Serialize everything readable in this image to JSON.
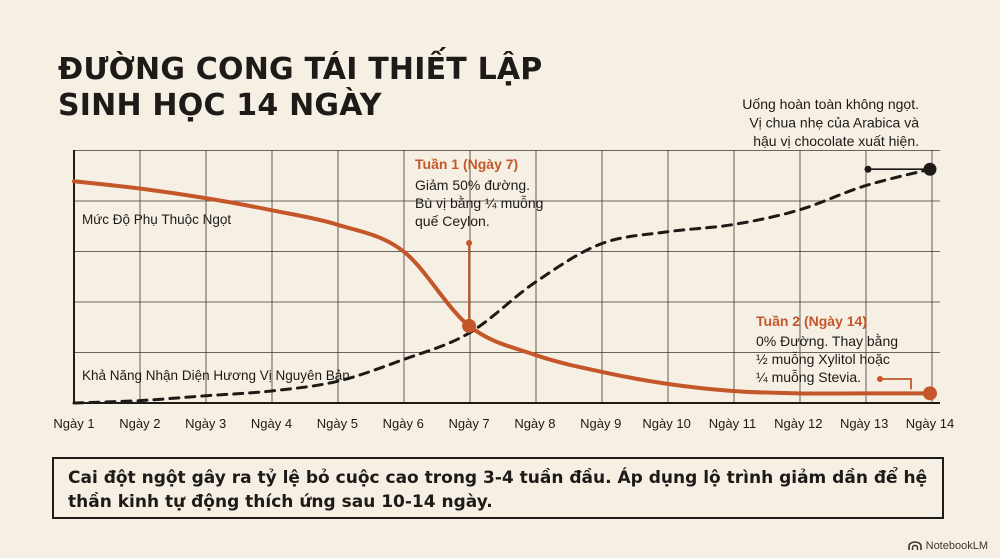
{
  "title_lines": [
    "ĐƯỜNG CONG TÁI THIẾT LẬP",
    "SINH HỌC 14 NGÀY"
  ],
  "chart_data": {
    "type": "line",
    "x": [
      "Ngày 1",
      "Ngày 2",
      "Ngày 3",
      "Ngày 4",
      "Ngày 5",
      "Ngày 6",
      "Ngày 7",
      "Ngày 8",
      "Ngày 9",
      "Ngày 10",
      "Ngày 11",
      "Ngày 12",
      "Ngày 13",
      "Ngày 14"
    ],
    "ylim": [
      0,
      100
    ],
    "grid": true,
    "series": [
      {
        "name": "Mức Độ Phụ Thuộc Ngọt",
        "style": "solid",
        "color": "#c4572a",
        "values": [
          92,
          89,
          85,
          80,
          74,
          63,
          32,
          20,
          13,
          8,
          5,
          4,
          4,
          4
        ]
      },
      {
        "name": "Khả Năng Nhận Diện Hương Vị Nguyên Bản",
        "style": "dashed",
        "color": "#1d1a17",
        "values": [
          0,
          1,
          3,
          5,
          9,
          18,
          29,
          50,
          66,
          71,
          74,
          80,
          90,
          97
        ]
      }
    ],
    "annotations": [
      {
        "title": "Tuần 1 (Ngày 7)",
        "lines": [
          "Giảm 50% đường.",
          "Bù vị bằng ¼ muỗng",
          "quế Ceylon."
        ]
      },
      {
        "title": "Tuần 2 (Ngày 14)",
        "lines": [
          "0% Đường. Thay bằng",
          "½ muỗng Xylitol hoặc",
          "¼ muỗng Stevia."
        ]
      },
      {
        "title": "",
        "lines": [
          "Uống hoàn toàn không ngọt.",
          "Vị chua nhẹ của Arabica và",
          "hậu vị chocolate xuất hiện."
        ]
      }
    ]
  },
  "note": "Cai đột ngột gây ra tỷ lệ bỏ cuộc cao trong 3-4 tuần đầu.  Áp dụng lộ trình giảm dần để hệ thần kinh tự động thích ứng sau 10-14 ngày.",
  "brand": "NotebookLM",
  "colors": {
    "background": "#f6efe3",
    "accent": "#c4572a",
    "ink": "#1d1a17"
  }
}
